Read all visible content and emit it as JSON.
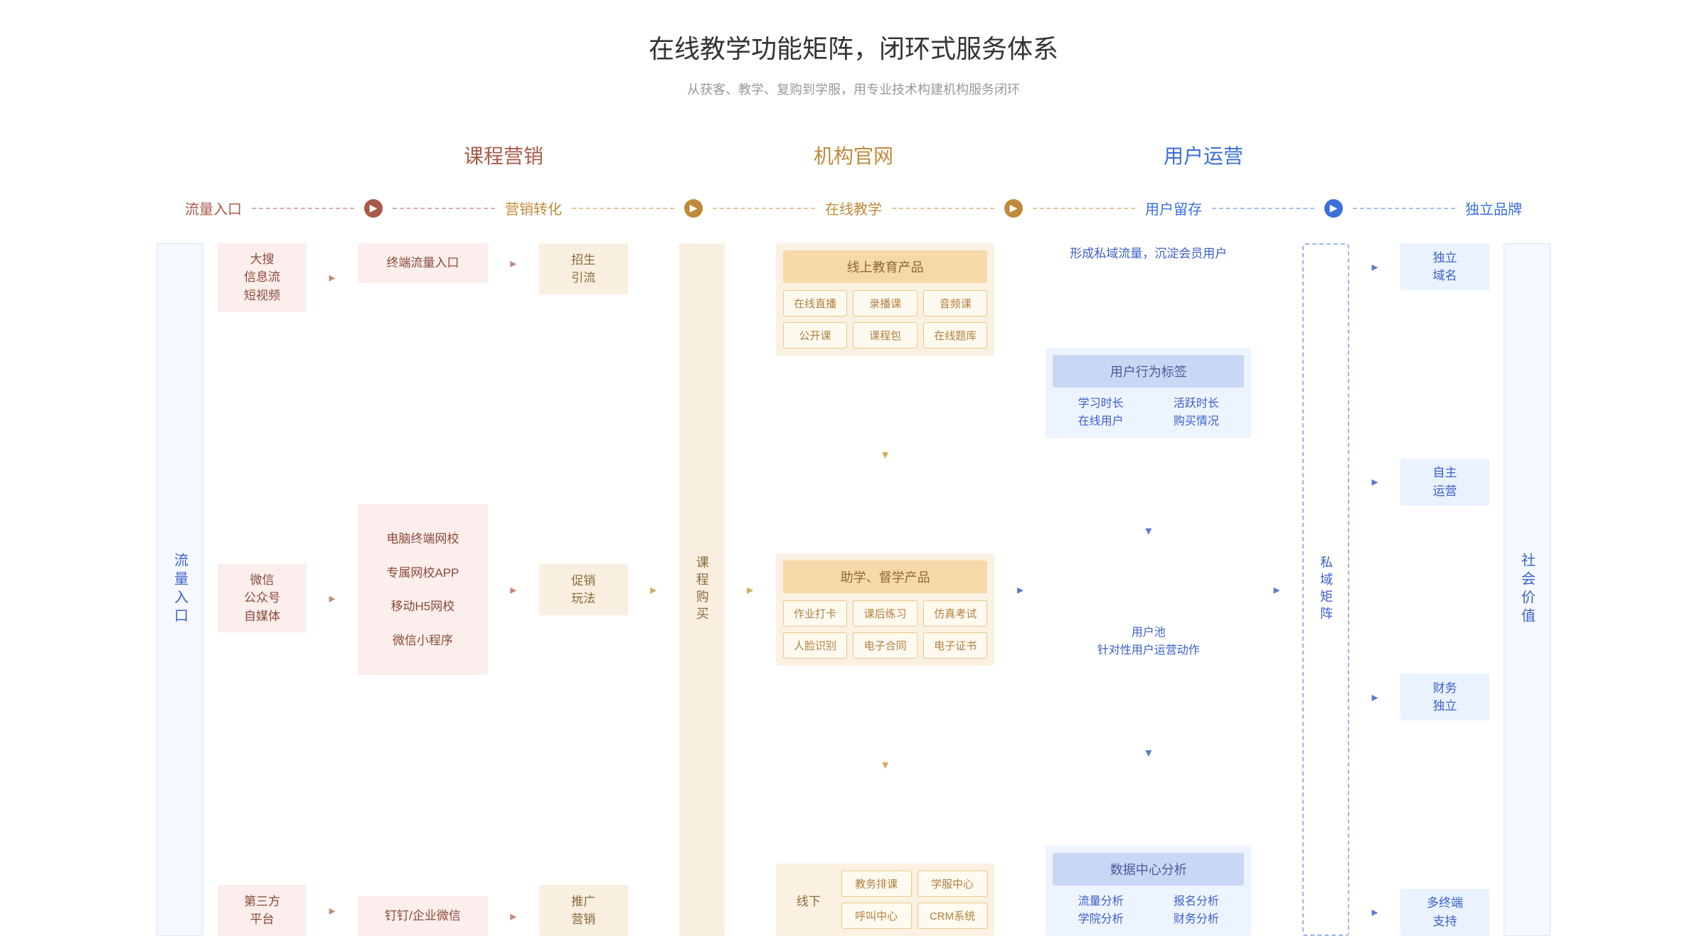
{
  "title": "在线教学功能矩阵，闭环式服务体系",
  "subtitle": "从获客、教学、复购到学服，用专业技术构建机构服务闭环",
  "section_headers": [
    {
      "text": "课程营销",
      "color": "#a85a48"
    },
    {
      "text": "机构官网",
      "color": "#c08a3a"
    },
    {
      "text": "用户运营",
      "color": "#3b6fd9"
    }
  ],
  "flow_labels": {
    "items": [
      {
        "text": "流量入口",
        "color": "#a85a48"
      },
      {
        "text": "营销转化",
        "color": "#c08a3a"
      },
      {
        "text": "在线教学",
        "color": "#c08a3a"
      },
      {
        "text": "用户留存",
        "color": "#3b6fd9"
      },
      {
        "text": "独立品牌",
        "color": "#3b6fd9"
      }
    ],
    "arrows": [
      {
        "color": "#a85a48",
        "dash": "#d4b0a8"
      },
      {
        "color": "#c08a3a",
        "dash": "#e0c89a"
      },
      {
        "color": "#c08a3a",
        "dash": "#e0c89a"
      },
      {
        "color": "#3b6fd9",
        "dash": "#a8c0e8"
      }
    ]
  },
  "side_left": "流量入口",
  "side_right": "社会价值",
  "traffic": {
    "items": [
      "大搜\n信息流\n短视频",
      "微信\n公众号\n自媒体",
      "第三方\n平台"
    ]
  },
  "terminal": {
    "top": "终端流量入口",
    "mid": [
      "电脑终端网校",
      "专属网校APP",
      "移动H5网校",
      "微信小程序"
    ],
    "bottom": "钉钉/企业微信"
  },
  "convert": {
    "items": [
      "招生\n引流",
      "促销\n玩法",
      "推广\n营销"
    ]
  },
  "buy": "课程购买",
  "online": {
    "panel1": {
      "title": "线上教育产品",
      "rows": [
        [
          "在线直播",
          "录播课",
          "音频课"
        ],
        [
          "公开课",
          "课程包",
          "在线题库"
        ]
      ]
    },
    "panel2": {
      "title": "助学、督学产品",
      "rows": [
        [
          "作业打卡",
          "课后练习",
          "仿真考试"
        ],
        [
          "人脸识别",
          "电子合同",
          "电子证书"
        ]
      ]
    },
    "offline": {
      "label": "线下",
      "rows": [
        [
          "教务排课",
          "学服中心"
        ],
        [
          "呼叫中心",
          "CRM系统"
        ]
      ]
    }
  },
  "retain": {
    "headline": "形成私域流量，沉淀会员用户",
    "panel1": {
      "title": "用户行为标签",
      "row1": [
        "学习时长",
        "活跃时长"
      ],
      "row2": [
        "在线用户",
        "购买情况"
      ]
    },
    "mid": [
      "用户池",
      "针对性用户运营动作"
    ],
    "panel2": {
      "title": "数据中心分析",
      "row1": [
        "流量分析",
        "报名分析"
      ],
      "row2": [
        "学院分析",
        "财务分析"
      ]
    }
  },
  "private_matrix": "私域矩阵",
  "brand": {
    "items": [
      "独立\n域名",
      "自主\n运营",
      "财务\n独立",
      "多终端\n支持"
    ]
  },
  "colors": {
    "pink_bg": "#fbeeec",
    "tan_bg": "#f8efe0",
    "blue_bg": "#eaf1ff"
  }
}
